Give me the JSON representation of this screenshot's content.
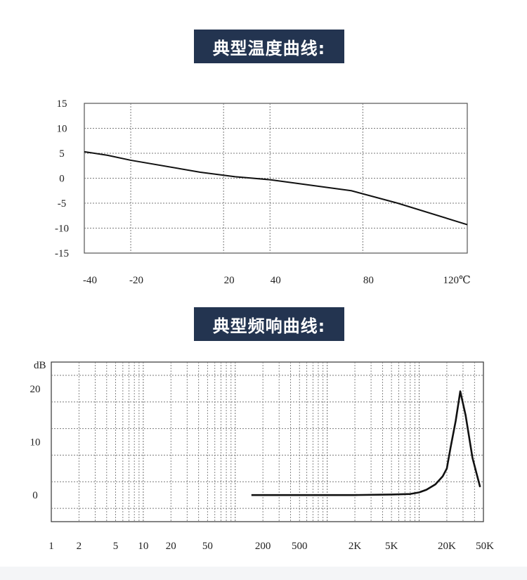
{
  "sections": [
    {
      "title": "典型温度曲线:"
    },
    {
      "title": "典型频响曲线:"
    }
  ],
  "colors": {
    "title_bg": "#233450",
    "title_fg": "#ffffff",
    "curve": "#111111",
    "grid": "#7a7a7a"
  },
  "chart_data": [
    {
      "type": "line",
      "title": "典型温度曲线:",
      "xlabel": "",
      "ylabel": "",
      "unit_label": "℃",
      "xlim": [
        -40,
        125
      ],
      "ylim": [
        -15,
        15
      ],
      "x_ticks": [
        -40,
        -20,
        20,
        40,
        80,
        120
      ],
      "x_tick_labels": [
        "-40",
        "-20",
        "20",
        "40",
        "80",
        "120℃"
      ],
      "y_ticks": [
        15,
        10,
        5,
        0,
        -5,
        -10,
        -15
      ],
      "y_tick_labels": [
        "15",
        "10",
        "5",
        "0",
        "-5",
        "-10",
        "-15"
      ],
      "x_grid": [
        -20,
        20,
        40,
        80
      ],
      "grid": true,
      "series": [
        {
          "x": [
            -40,
            -30,
            -20,
            10,
            25,
            40,
            75,
            95,
            125
          ],
          "y": [
            5.3,
            4.6,
            3.6,
            1.2,
            0.3,
            -0.3,
            -2.5,
            -5,
            -9.3
          ]
        }
      ]
    },
    {
      "type": "line",
      "title": "典型频响曲线:",
      "ylabel": "dB",
      "xlabel": "",
      "x_scale": "log",
      "xlim": [
        1,
        50000
      ],
      "ylim": [
        -5,
        25
      ],
      "x_ticks": [
        1,
        2,
        5,
        10,
        20,
        50,
        200,
        500,
        2000,
        5000,
        20000,
        50000
      ],
      "x_tick_labels": [
        "1",
        "2",
        "5",
        "10",
        "20",
        "50",
        "200",
        "500",
        "2K",
        "5K",
        "20K",
        "50K"
      ],
      "y_ticks": [
        20,
        10,
        0
      ],
      "y_tick_labels": [
        "20",
        "10",
        "0"
      ],
      "grid": true,
      "series": [
        {
          "x": [
            150,
            1000,
            2000,
            5000,
            8000,
            10000,
            12000,
            15000,
            18000,
            20000,
            22000,
            25000,
            28000,
            32000,
            38000,
            46000
          ],
          "y": [
            0,
            0,
            0,
            0.1,
            0.2,
            0.5,
            1,
            2,
            3.5,
            5,
            9,
            14,
            19.5,
            15,
            7,
            1.5
          ]
        }
      ]
    }
  ]
}
